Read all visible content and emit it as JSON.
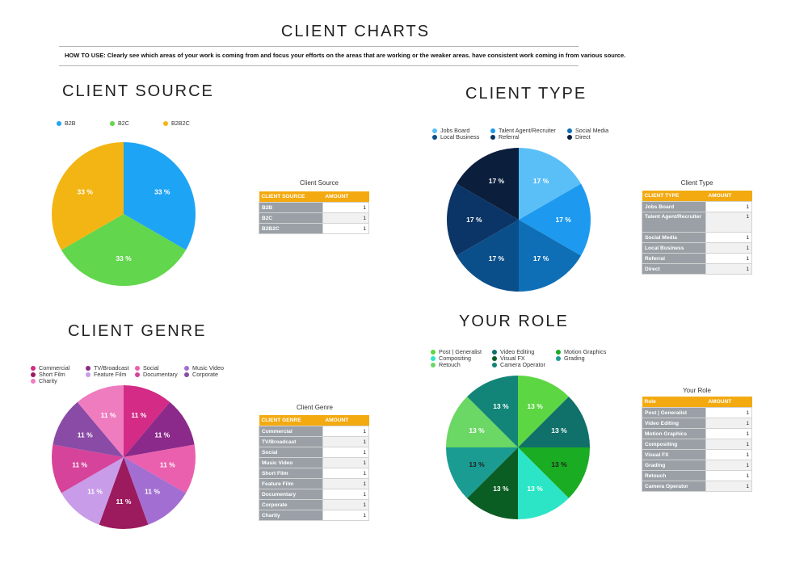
{
  "page": {
    "title": "CLIENT CHARTS",
    "how_to": "HOW TO USE: Clearly see which areas of your work is coming from and focus your efforts on the areas that are working or the weaker areas. have consistent work coming in from various source."
  },
  "chart_data": [
    {
      "id": "source",
      "type": "pie",
      "title": "CLIENT SOURCE",
      "categories": [
        "B2B",
        "B2C",
        "B2B2C"
      ],
      "values": [
        1,
        1,
        1
      ],
      "labels": [
        "33 %",
        "33 %",
        "33 %"
      ],
      "colors": [
        "#1ea4f5",
        "#62d64c",
        "#f3b513"
      ],
      "label_colors": [
        "#ffffff",
        "#ffffff",
        "#ffffff"
      ],
      "table": {
        "title": "Client Source",
        "header": [
          "CLIENT SOURCE",
          "AMOUNT"
        ]
      }
    },
    {
      "id": "type",
      "type": "pie",
      "title": "CLIENT TYPE",
      "categories": [
        "Jobs Board",
        "Talent Agent/Recruiter",
        "Social Media",
        "Local Business",
        "Referral",
        "Direct"
      ],
      "values": [
        1,
        1,
        1,
        1,
        1,
        1
      ],
      "labels": [
        "17 %",
        "17 %",
        "17 %",
        "17 %",
        "17 %",
        "17 %"
      ],
      "colors": [
        "#5bbff7",
        "#1d9af0",
        "#0f6fb6",
        "#0b4f8a",
        "#0b3566",
        "#0b1f3d"
      ],
      "label_colors": [
        "#ffffff",
        "#ffffff",
        "#ffffff",
        "#ffffff",
        "#ffffff",
        "#ffffff"
      ],
      "table": {
        "title": "Client Type",
        "header": [
          "CLIENT TYPE",
          "AMOUNT"
        ]
      }
    },
    {
      "id": "genre",
      "type": "pie",
      "title": "CLIENT GENRE",
      "categories": [
        "Commercial",
        "TV/Broadcast",
        "Social",
        "Music Video",
        "Short Film",
        "Feature Film",
        "Documentary",
        "Corporate",
        "Charity"
      ],
      "values": [
        1,
        1,
        1,
        1,
        1,
        1,
        1,
        1,
        1
      ],
      "labels": [
        "11 %",
        "11 %",
        "11 %",
        "11 %",
        "11 %",
        "11 %",
        "11 %",
        "11 %",
        "11 %"
      ],
      "colors": [
        "#d32b86",
        "#8b2a8a",
        "#ea5fae",
        "#a36ed2",
        "#9c1a5e",
        "#c89ce8",
        "#d5439a",
        "#8a4ba6",
        "#f07cc0"
      ],
      "label_colors": [
        "#ffffff",
        "#ffffff",
        "#ffffff",
        "#ffffff",
        "#ffffff",
        "#ffffff",
        "#ffffff",
        "#ffffff",
        "#ffffff"
      ],
      "table": {
        "title": "Client Genre",
        "header": [
          "CLIENT GENRE",
          "AMOUNT"
        ]
      }
    },
    {
      "id": "role",
      "type": "pie",
      "title": "YOUR ROLE",
      "categories": [
        "Post | Generalist",
        "Video Editing",
        "Motion Graphics",
        "Compositing",
        "Visual FX",
        "Grading",
        "Retouch",
        "Camera Operator"
      ],
      "values": [
        1,
        1,
        1,
        1,
        1,
        1,
        1,
        1
      ],
      "labels": [
        "13 %",
        "13 %",
        "13 %",
        "13 %",
        "13 %",
        "13 %",
        "13 %",
        "13 %"
      ],
      "colors": [
        "#5cd642",
        "#10706a",
        "#1aac22",
        "#2ce5c6",
        "#0b5e23",
        "#1a9c93",
        "#6bd764",
        "#128578"
      ],
      "label_colors": [
        "#ffffff",
        "#ffffff",
        "#222222",
        "#ffffff",
        "#ffffff",
        "#222222",
        "#ffffff",
        "#ffffff"
      ],
      "table": {
        "title": "Your Role",
        "header": [
          "Role",
          "AMOUNT"
        ]
      }
    }
  ]
}
